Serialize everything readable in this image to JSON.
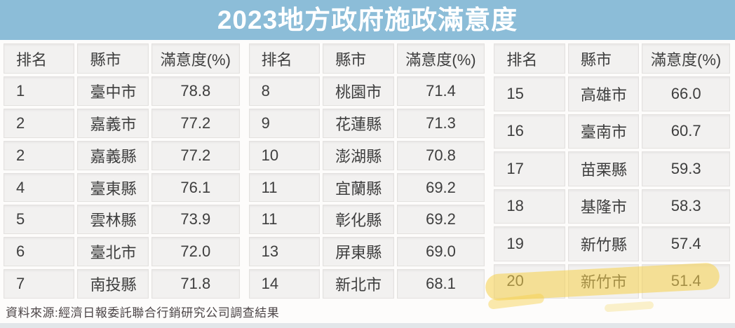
{
  "title": "2023地方政府施政滿意度",
  "columns": {
    "rank": "排名",
    "city": "縣市",
    "satisfaction": "滿意度(%)"
  },
  "tables": [
    {
      "rows": [
        {
          "rank": "1",
          "city": "臺中市",
          "value": "78.8"
        },
        {
          "rank": "2",
          "city": "嘉義市",
          "value": "77.2"
        },
        {
          "rank": "2",
          "city": "嘉義縣",
          "value": "77.2"
        },
        {
          "rank": "4",
          "city": "臺東縣",
          "value": "76.1"
        },
        {
          "rank": "5",
          "city": "雲林縣",
          "value": "73.9"
        },
        {
          "rank": "6",
          "city": "臺北市",
          "value": "72.0"
        },
        {
          "rank": "7",
          "city": "南投縣",
          "value": "71.8"
        }
      ]
    },
    {
      "rows": [
        {
          "rank": "8",
          "city": "桃園市",
          "value": "71.4"
        },
        {
          "rank": "9",
          "city": "花蓮縣",
          "value": "71.3"
        },
        {
          "rank": "10",
          "city": "澎湖縣",
          "value": "70.8"
        },
        {
          "rank": "11",
          "city": "宜蘭縣",
          "value": "69.2"
        },
        {
          "rank": "11",
          "city": "彰化縣",
          "value": "69.2"
        },
        {
          "rank": "13",
          "city": "屏東縣",
          "value": "69.0"
        },
        {
          "rank": "14",
          "city": "新北市",
          "value": "68.1"
        }
      ]
    },
    {
      "rows": [
        {
          "rank": "15",
          "city": "高雄市",
          "value": "66.0"
        },
        {
          "rank": "16",
          "city": "臺南市",
          "value": "60.7"
        },
        {
          "rank": "17",
          "city": "苗栗縣",
          "value": "59.3"
        },
        {
          "rank": "18",
          "city": "基隆市",
          "value": "58.3"
        },
        {
          "rank": "19",
          "city": "新竹縣",
          "value": "57.4"
        },
        {
          "rank": "20",
          "city": "新竹市",
          "value": "51.4"
        }
      ]
    }
  ],
  "source": "資料來源:經濟日報委託聯合行銷研究公司調查結果",
  "highlight": {
    "row_rank": "20",
    "row_city": "新竹市",
    "color": "#f6d04a"
  },
  "colors": {
    "title_bar_bg": "#8cbdd8",
    "title_text": "#ffffff",
    "cell_bg": "#f2f1f0",
    "cell_text": "#3e3e3e",
    "footer_text": "#4c4547",
    "bottom_strip": "#e2e6e9"
  },
  "chart_data": {
    "type": "table",
    "title": "2023地方政府施政滿意度",
    "columns": [
      "排名",
      "縣市",
      "滿意度(%)"
    ],
    "rows": [
      [
        1,
        "臺中市",
        78.8
      ],
      [
        2,
        "嘉義市",
        77.2
      ],
      [
        2,
        "嘉義縣",
        77.2
      ],
      [
        4,
        "臺東縣",
        76.1
      ],
      [
        5,
        "雲林縣",
        73.9
      ],
      [
        6,
        "臺北市",
        72.0
      ],
      [
        7,
        "南投縣",
        71.8
      ],
      [
        8,
        "桃園市",
        71.4
      ],
      [
        9,
        "花蓮縣",
        71.3
      ],
      [
        10,
        "澎湖縣",
        70.8
      ],
      [
        11,
        "宜蘭縣",
        69.2
      ],
      [
        11,
        "彰化縣",
        69.2
      ],
      [
        13,
        "屏東縣",
        69.0
      ],
      [
        14,
        "新北市",
        68.1
      ],
      [
        15,
        "高雄市",
        66.0
      ],
      [
        16,
        "臺南市",
        60.7
      ],
      [
        17,
        "苗栗縣",
        59.3
      ],
      [
        18,
        "基隆市",
        58.3
      ],
      [
        19,
        "新竹縣",
        57.4
      ],
      [
        20,
        "新竹市",
        51.4
      ]
    ],
    "highlighted_row": [
      20,
      "新竹市",
      51.4
    ],
    "source": "資料來源:經濟日報委託聯合行銷研究公司調查結果",
    "layout": "three side-by-side table panels, ranks 1-7 / 8-14 / 15-20"
  }
}
